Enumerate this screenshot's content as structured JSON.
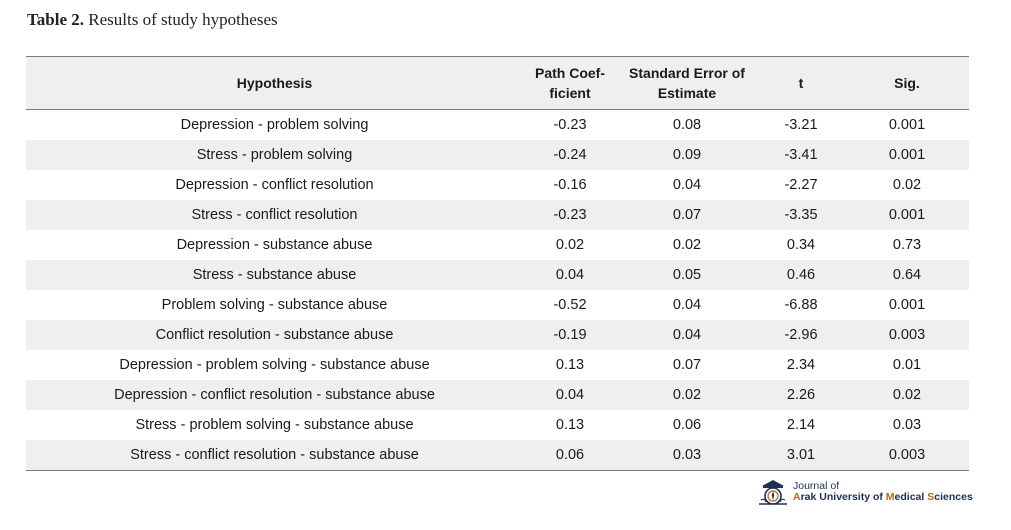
{
  "caption": {
    "label": "Table 2.",
    "title": "Results of study hypotheses"
  },
  "table": {
    "headers": {
      "hypothesis": "Hypothesis",
      "path_line1": "Path Coef-",
      "path_line2": "ficient",
      "se_line1": "Standard Error of",
      "se_line2": "Estimate",
      "t": "t",
      "sig": "Sig."
    },
    "rows": [
      [
        "Depression - problem solving",
        "-0.23",
        "0.08",
        "-3.21",
        "0.001"
      ],
      [
        "Stress - problem solving",
        "-0.24",
        "0.09",
        "-3.41",
        "0.001"
      ],
      [
        "Depression - conflict resolution",
        "-0.16",
        "0.04",
        "-2.27",
        "0.02"
      ],
      [
        "Stress - conflict resolution",
        "-0.23",
        "0.07",
        "-3.35",
        "0.001"
      ],
      [
        "Depression - substance abuse",
        "0.02",
        "0.02",
        "0.34",
        "0.73"
      ],
      [
        "Stress - substance abuse",
        "0.04",
        "0.05",
        "0.46",
        "0.64"
      ],
      [
        "Problem solving - substance abuse",
        "-0.52",
        "0.04",
        "-6.88",
        "0.001"
      ],
      [
        "Conflict resolution - substance abuse",
        "-0.19",
        "0.04",
        "-2.96",
        "0.003"
      ],
      [
        "Depression - problem solving - substance abuse",
        "0.13",
        "0.07",
        "2.34",
        "0.01"
      ],
      [
        "Depression - conflict resolution - substance abuse",
        "0.04",
        "0.02",
        "2.26",
        "0.02"
      ],
      [
        "Stress - problem solving - substance abuse",
        "0.13",
        "0.06",
        "2.14",
        "0.03"
      ],
      [
        "Stress - conflict resolution - substance abuse",
        "0.06",
        "0.03",
        "3.01",
        "0.003"
      ]
    ]
  },
  "journal": {
    "line1": "Journal of",
    "line2_a": "A",
    "line2_b": "rak University of ",
    "line2_c": "M",
    "line2_d": "edical ",
    "line2_e": "S",
    "line2_f": "ciences",
    "logo_icon": "journal-seal-icon",
    "colors": {
      "navy": "#1f2e55",
      "accent": "#b5651d"
    }
  }
}
